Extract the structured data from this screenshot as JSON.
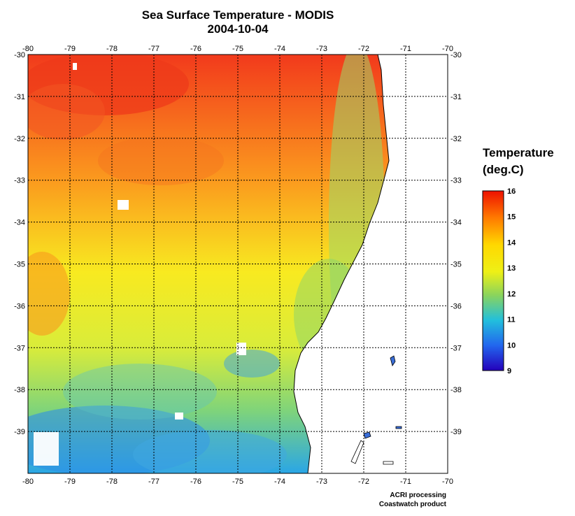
{
  "title": {
    "line1": "Sea Surface Temperature - MODIS",
    "line2": "2004-10-04"
  },
  "legend": {
    "title_line1": "Temperature",
    "title_line2": "(deg.C)",
    "ticks": [
      "16",
      "15",
      "14",
      "13",
      "12",
      "11",
      "10",
      "9"
    ],
    "range": [
      9,
      16
    ],
    "colors": [
      "#ee0000",
      "#ff8800",
      "#ffdd00",
      "#eeee22",
      "#88dd55",
      "#22bbdd",
      "#2266ee",
      "#2200bb"
    ]
  },
  "axes": {
    "lon_ticks": [
      "-80",
      "-79",
      "-78",
      "-77",
      "-76",
      "-75",
      "-74",
      "-73",
      "-72",
      "-71",
      "-70"
    ],
    "lat_ticks": [
      "-30",
      "-31",
      "-32",
      "-33",
      "-34",
      "-35",
      "-36",
      "-37",
      "-38",
      "-39"
    ],
    "lon_range": [
      -80,
      -70
    ],
    "lat_range": [
      -30,
      -40
    ],
    "grid": "dotted"
  },
  "credits": {
    "line1": "ACRI processing",
    "line2": "Coastwatch product"
  }
}
